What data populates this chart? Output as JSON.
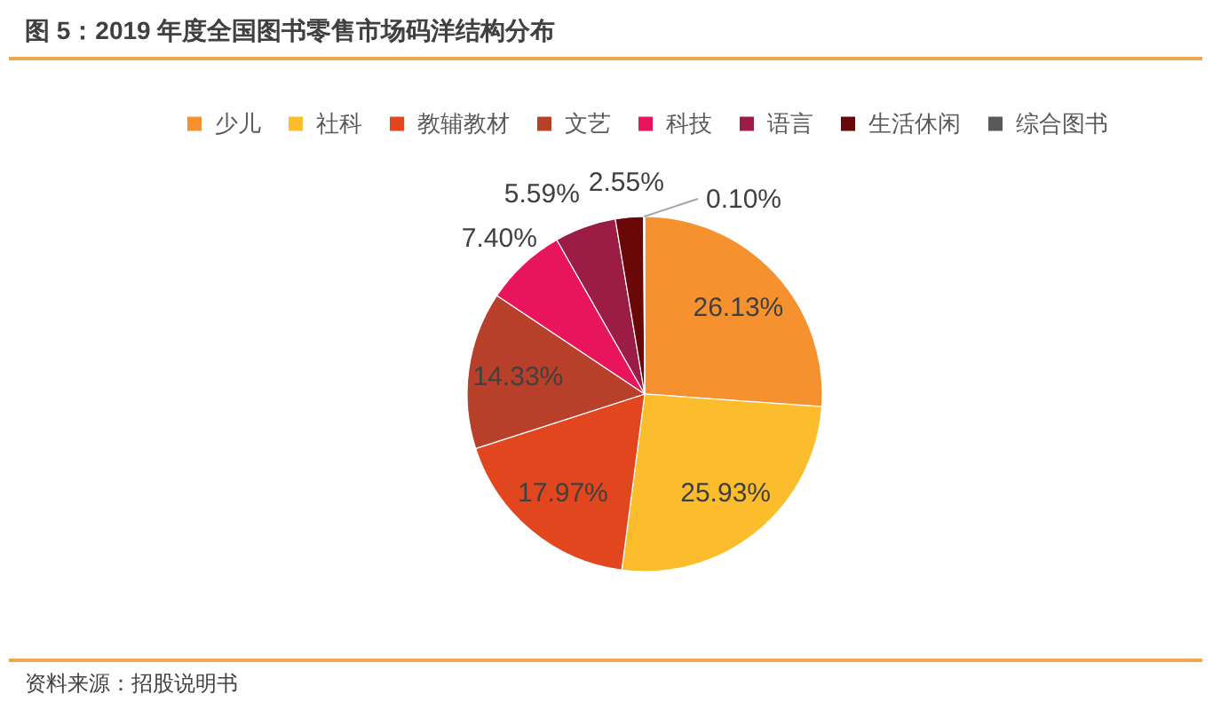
{
  "chart_data": {
    "type": "pie",
    "title": "图 5：2019 年度全国图书零售市场码洋结构分布",
    "categories": [
      "少儿",
      "社科",
      "教辅教材",
      "文艺",
      "科技",
      "语言",
      "生活休闲",
      "综合图书"
    ],
    "values": [
      26.13,
      25.93,
      17.97,
      14.33,
      7.4,
      5.59,
      2.55,
      0.1
    ],
    "colors": [
      "#f5922f",
      "#fbbd2c",
      "#e2461f",
      "#b8402a",
      "#e8145c",
      "#9b1c45",
      "#6a0808",
      "#595959"
    ],
    "value_labels": [
      "26.13%",
      "25.93%",
      "17.97%",
      "14.33%",
      "7.40%",
      "5.59%",
      "2.55%",
      "0.10%"
    ],
    "legend": "top",
    "annotations": [
      "资料来源：招股说明书"
    ]
  }
}
